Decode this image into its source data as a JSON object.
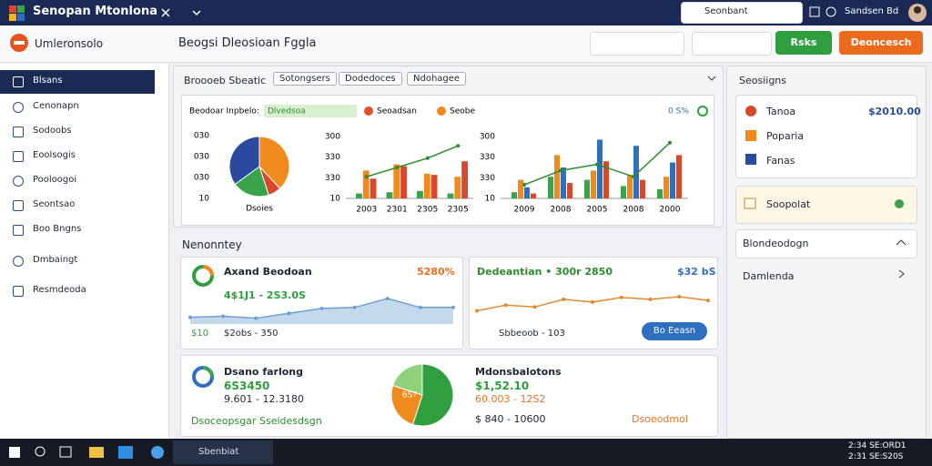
{
  "topbar": {
    "title": "Senopan Mtonlona",
    "search": "Seonbant",
    "user": "Sandsen Bd"
  },
  "header": {
    "app": "Umleronsolo",
    "page_title": "Beogsi Dleosioan Fggla",
    "buttons": [
      "Rsks",
      "Deoncesch"
    ]
  },
  "sidebar": {
    "items": [
      "Blsans",
      "Cenonapn",
      "Sodoobs",
      "Eoolsogis",
      "Pooloogoi",
      "Seontsao",
      "Boo Bngns",
      "Dmbaingt",
      "Resmdeoda"
    ]
  },
  "overview": {
    "title": "Broooeb Sbeatic",
    "tabs": [
      "Sotongsers",
      "Dodedoces",
      "Ndohagee"
    ],
    "legend_label": "Beodoar Inpbelo:",
    "legend": [
      "Dlvedsoa",
      "Seoadsan",
      "Seobe"
    ],
    "percent": "0 S%",
    "pie": {
      "type": "pie",
      "values": [
        38,
        7,
        20,
        35
      ],
      "colors": [
        "#f08a1c",
        "#d9482b",
        "#3aa34a",
        "#2a4aa0"
      ],
      "axis_labels": [
        "030",
        "030",
        "030",
        "10"
      ],
      "caption": "Dsoies"
    },
    "bar_chart_1": {
      "type": "bar",
      "x": [
        "2003",
        "2301",
        "2305",
        "2305"
      ],
      "ylim": [
        0,
        100
      ],
      "axis_labels": [
        "300",
        "330",
        "330",
        "10"
      ],
      "series": [
        {
          "color": "#3aa34a",
          "values": [
            8,
            10,
            12,
            8
          ]
        },
        {
          "color": "#f08a1c",
          "values": [
            45,
            55,
            40,
            35
          ]
        },
        {
          "color": "#d9482b",
          "values": [
            32,
            52,
            38,
            60
          ]
        }
      ],
      "line": {
        "color": "#2e8b2e",
        "values": [
          35,
          50,
          65,
          85
        ]
      }
    },
    "bar_chart_2": {
      "type": "bar",
      "x": [
        "2009",
        "2008",
        "2005",
        "2008",
        "2000"
      ],
      "ylim": [
        0,
        100
      ],
      "axis_labels": [
        "300",
        "330",
        "330",
        "10"
      ],
      "series": [
        {
          "color": "#3aa34a",
          "values": [
            10,
            35,
            30,
            20,
            15
          ]
        },
        {
          "color": "#f08a1c",
          "values": [
            30,
            70,
            45,
            38,
            35
          ]
        },
        {
          "color": "#2f6fc0",
          "values": [
            18,
            50,
            95,
            85,
            58
          ]
        },
        {
          "color": "#d9482b",
          "values": [
            8,
            25,
            60,
            30,
            70
          ]
        }
      ],
      "line": {
        "color": "#2e8b2e",
        "values": [
          22,
          45,
          55,
          35,
          90
        ]
      }
    }
  },
  "summary": {
    "title": "Nenonntey",
    "card_1": {
      "name": "Axand Beodoan",
      "value": "5280%",
      "range": "4$1J1 - 2S3.0S",
      "badge": "$10",
      "footer": "$2obs - 350",
      "area": {
        "type": "area",
        "ylim": [
          0,
          100
        ],
        "color": "#9fbfe0",
        "values": [
          10,
          12,
          8,
          18,
          28,
          30,
          48,
          30,
          30
        ]
      }
    },
    "card_2": {
      "name": "Dedeantian • 300r 2850",
      "value": "$32 bS",
      "footer": "Sbbeoob - 103",
      "button": "Bo Eeasn",
      "line": {
        "type": "line",
        "ylim": [
          0,
          100
        ],
        "color": "#e08a2a",
        "values": [
          25,
          40,
          35,
          55,
          48,
          60,
          55,
          62,
          52
        ]
      }
    },
    "card_3": {
      "name": "Dsano farlong",
      "value": "6S3450",
      "range": "9.601 - 12.3180",
      "tags": [
        "Dsoceopsgar",
        "Sseidesdsgn"
      ],
      "pie": {
        "type": "pie",
        "values": [
          55,
          25,
          20
        ],
        "colors": [
          "#2e9e3e",
          "#f08a1c",
          "#8fd07a"
        ],
        "label": "6S?"
      },
      "right_name": "Mdonsbalotons",
      "right_value": "$1,52.10",
      "right_sub": "60.003 - 12S2",
      "right_range": "$ 840 - 10600",
      "right_tag": "Dsoeodmol"
    }
  },
  "right_panel": {
    "title": "Seosiigns",
    "items": [
      {
        "label": "Tanoa",
        "value": "$2010.00"
      },
      {
        "label": "Poparia"
      },
      {
        "label": "Fanas"
      }
    ],
    "notice": "Soopolat",
    "sections": [
      "Blondeodogn",
      "Damlenda"
    ]
  },
  "taskbar": {
    "app": "Sbenbiat",
    "time": "2:34 SE:ORD1",
    "date": "2:31 SE:S20S"
  }
}
